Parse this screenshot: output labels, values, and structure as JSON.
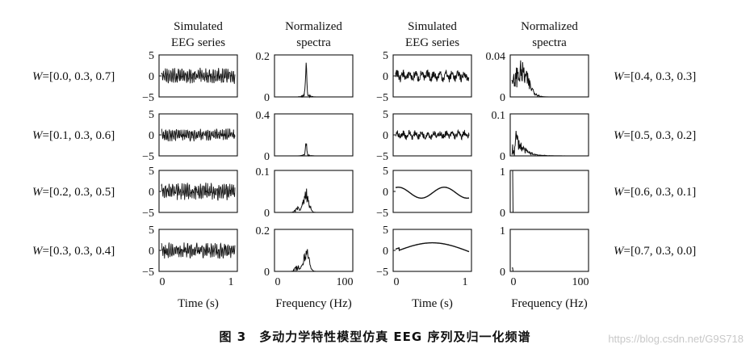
{
  "caption": "图 3　多动力学特性模型仿真 EEG 序列及归一化频谱",
  "watermark": "https://blog.csdn.net/G9S718",
  "chart_data": {
    "type": "line",
    "column_titles": [
      [
        "Simulated",
        "EEG series"
      ],
      [
        "Normalized",
        "spectra"
      ],
      [
        "Simulated",
        "EEG series"
      ],
      [
        "Normalized",
        "spectra"
      ]
    ],
    "xlabels": [
      "Time (s)",
      "Frequency (Hz)",
      "Time (s)",
      "Frequency (Hz)"
    ],
    "time_axis": {
      "xlim": [
        0,
        1
      ],
      "xticks": [
        "0",
        "1"
      ]
    },
    "freq_axis": {
      "xlim": [
        0,
        100
      ],
      "xticks": [
        "0",
        "100"
      ]
    },
    "left_panels": [
      {
        "weight_label": "=[0.0, 0.3, 0.7]",
        "eeg_ylim": [
          -5,
          5
        ],
        "eeg_yticks": [
          "5",
          "0",
          "−5"
        ],
        "eeg_style": "fast",
        "eeg_amplitude": 2,
        "spec_yticks": [
          "0.2",
          "0"
        ],
        "spec_ylim": [
          0,
          0.2
        ],
        "spectrum": {
          "shape": "peak",
          "center_hz": 40,
          "peak": 0.17
        }
      },
      {
        "weight_label": "=[0.1, 0.3, 0.6]",
        "eeg_ylim": [
          -5,
          5
        ],
        "eeg_yticks": [
          "5",
          "0",
          "−5"
        ],
        "eeg_style": "fast",
        "eeg_amplitude": 1.6,
        "spec_yticks": [
          "0.4",
          "0"
        ],
        "spec_ylim": [
          0,
          0.4
        ],
        "spectrum": {
          "shape": "peak",
          "center_hz": 40,
          "peak": 0.14
        }
      },
      {
        "weight_label": "=[0.2, 0.3, 0.5]",
        "eeg_ylim": [
          -5,
          5
        ],
        "eeg_yticks": [
          "5",
          "0",
          "−5"
        ],
        "eeg_style": "fast",
        "eeg_amplitude": 2.2,
        "spec_yticks": [
          "0.1",
          "0"
        ],
        "spec_ylim": [
          0,
          0.1
        ],
        "spectrum": {
          "shape": "band",
          "center_hz": 40,
          "peak": 0.06
        }
      },
      {
        "weight_label": "=[0.3, 0.3, 0.4]",
        "eeg_ylim": [
          -5,
          5
        ],
        "eeg_yticks": [
          "5",
          "0",
          "−5"
        ],
        "eeg_style": "fast",
        "eeg_amplitude": 2,
        "spec_yticks": [
          "0.2",
          "0"
        ],
        "spec_ylim": [
          0,
          0.2
        ],
        "spectrum": {
          "shape": "band",
          "center_hz": 40,
          "peak": 0.13
        }
      }
    ],
    "right_panels": [
      {
        "weight_label": "=[0.4, 0.3, 0.3]",
        "eeg_ylim": [
          -5,
          5
        ],
        "eeg_yticks": [
          "5",
          "0",
          "−5"
        ],
        "eeg_style": "noisy",
        "eeg_amplitude": 1.3,
        "spec_yticks": [
          "0.04",
          "0"
        ],
        "spec_ylim": [
          0,
          0.04
        ],
        "spectrum": {
          "shape": "broad",
          "center_hz": 12,
          "peak": 0.035
        }
      },
      {
        "weight_label": "=[0.5, 0.3, 0.2]",
        "eeg_ylim": [
          -5,
          5
        ],
        "eeg_yticks": [
          "5",
          "0",
          "−5"
        ],
        "eeg_style": "noisy",
        "eeg_amplitude": 1.0,
        "spec_yticks": [
          "0.1",
          "0"
        ],
        "spec_ylim": [
          0,
          0.1
        ],
        "spectrum": {
          "shape": "decay",
          "center_hz": 5,
          "peak": 0.07
        }
      },
      {
        "weight_label": "=[0.6, 0.3, 0.1]",
        "eeg_ylim": [
          -5,
          5
        ],
        "eeg_yticks": [
          "5",
          "0",
          "−5"
        ],
        "eeg_style": "sine",
        "eeg_amplitude": 1.3,
        "eeg_cycles": 1.6,
        "spec_yticks": [
          "1",
          "0"
        ],
        "spec_ylim": [
          0,
          1
        ],
        "spectrum": {
          "shape": "spike",
          "center_hz": 1,
          "peak": 1
        }
      },
      {
        "weight_label": "=[0.7, 0.3, 0.0]",
        "eeg_ylim": [
          -5,
          5
        ],
        "eeg_yticks": [
          "5",
          "0",
          "−5"
        ],
        "eeg_style": "hump",
        "eeg_amplitude": 2.1,
        "spec_yticks": [
          "1",
          "0"
        ],
        "spec_ylim": [
          0,
          1
        ],
        "spectrum": {
          "shape": "spike",
          "center_hz": 0.5,
          "peak": 0.08
        }
      }
    ]
  }
}
